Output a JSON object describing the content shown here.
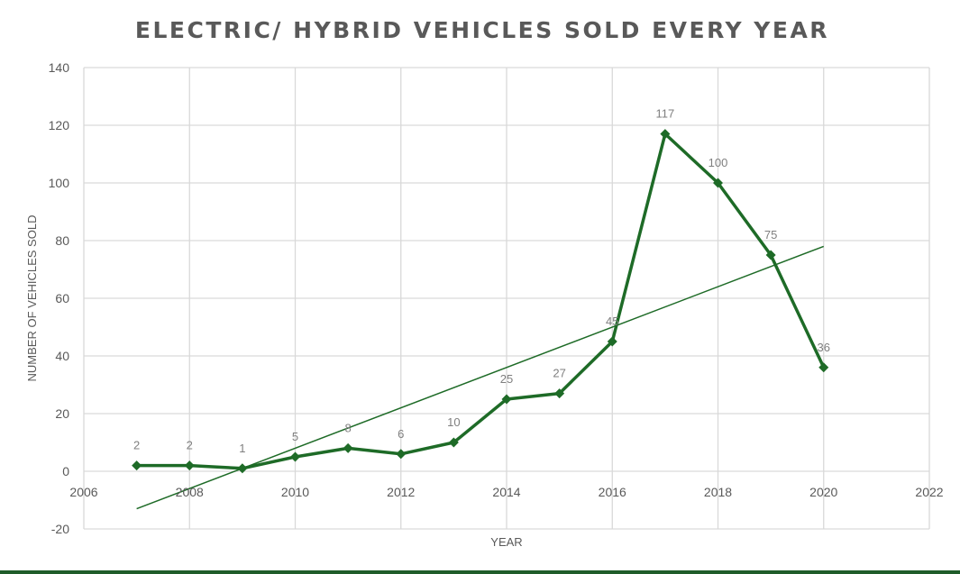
{
  "chart_data": {
    "type": "line",
    "title": "ELECTRIC/ HYBRID VEHICLES SOLD EVERY YEAR",
    "xlabel": "YEAR",
    "ylabel": "NUMBER OF VEHICLES SOLD",
    "xlim": [
      2006,
      2022
    ],
    "ylim": [
      -20,
      140
    ],
    "x_ticks": [
      "2006",
      "2008",
      "2010",
      "2012",
      "2014",
      "2016",
      "2018",
      "2020",
      "2022"
    ],
    "y_ticks": [
      "-20",
      "0",
      "20",
      "40",
      "60",
      "80",
      "100",
      "120",
      "140"
    ],
    "grid": true,
    "series": [
      {
        "x": [
          2007,
          2008,
          2009,
          2010,
          2011,
          2012,
          2013,
          2014,
          2015,
          2016,
          2017,
          2018,
          2019,
          2020
        ],
        "values": [
          2,
          2,
          1,
          5,
          8,
          6,
          10,
          25,
          27,
          45,
          117,
          100,
          75,
          36
        ],
        "labels": [
          "2",
          "2",
          "1",
          "5",
          "8",
          "6",
          "10",
          "25",
          "27",
          "45",
          "117",
          "100",
          "75",
          "36"
        ],
        "marker": "diamond",
        "color": "#1e6b27"
      }
    ],
    "trendline": {
      "type": "linear",
      "x": [
        2007,
        2020
      ],
      "y": [
        -13,
        78
      ],
      "color": "#1e6b27"
    }
  },
  "colors": {
    "accent": "#1e6b27",
    "grid": "#d9d9d9",
    "title": "#595959",
    "bottom_bar": "#1f5c2a"
  }
}
